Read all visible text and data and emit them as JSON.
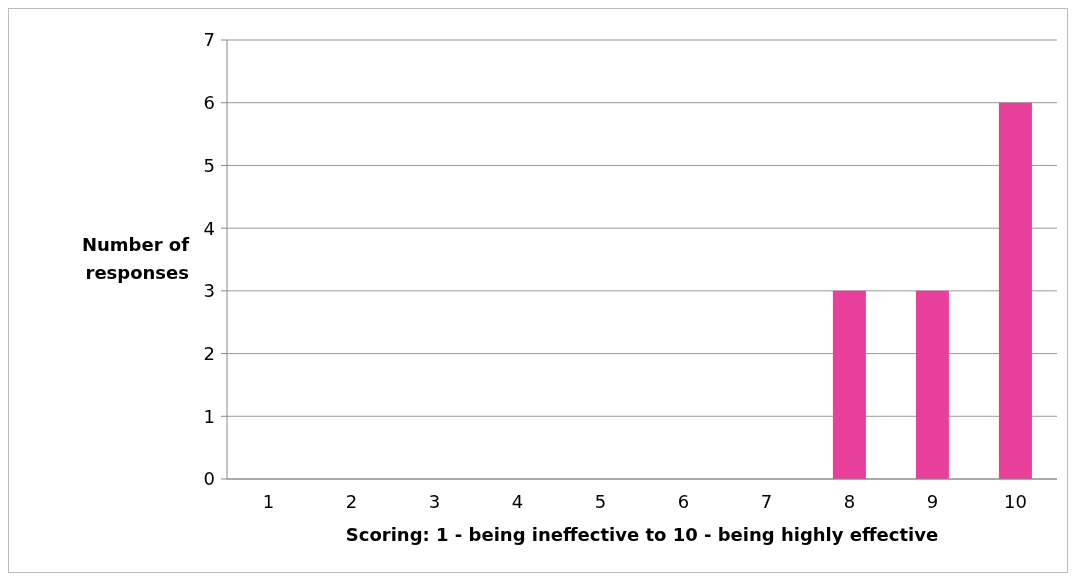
{
  "chart_data": {
    "type": "bar",
    "xlabel": "Scoring: 1 - being ineffective to 10 - being highly effective",
    "ylabel": "Number of responses",
    "categories": [
      "1",
      "2",
      "3",
      "4",
      "5",
      "6",
      "7",
      "8",
      "9",
      "10"
    ],
    "values": [
      0,
      0,
      0,
      0,
      0,
      0,
      0,
      3,
      3,
      6
    ],
    "color": "#e8409a",
    "ylim": [
      0,
      7
    ],
    "yticks": [
      0,
      1,
      2,
      3,
      4,
      5,
      6,
      7
    ],
    "grid": "y"
  }
}
